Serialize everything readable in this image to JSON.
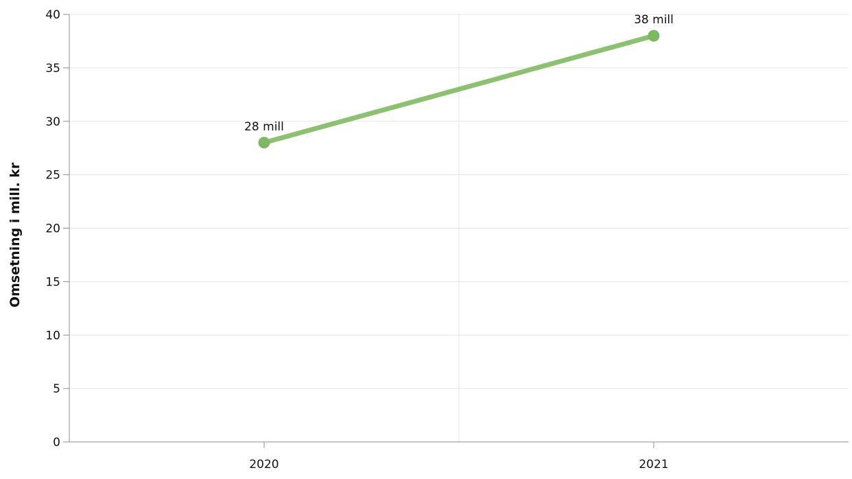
{
  "chart_data": {
    "type": "line",
    "title": "",
    "xlabel": "",
    "ylabel": "Omsetning i mill. kr",
    "categories": [
      "2020",
      "2021"
    ],
    "series": [
      {
        "values": [
          28,
          38
        ],
        "data_labels": [
          "28 mill",
          "38 mill"
        ],
        "color": "#8dc06f",
        "marker_color": "#7fb862"
      }
    ],
    "ylim": [
      0,
      40
    ],
    "yticks": [
      0,
      5,
      10,
      15,
      20,
      25,
      30,
      35,
      40
    ],
    "grid": true,
    "legend": "none"
  }
}
